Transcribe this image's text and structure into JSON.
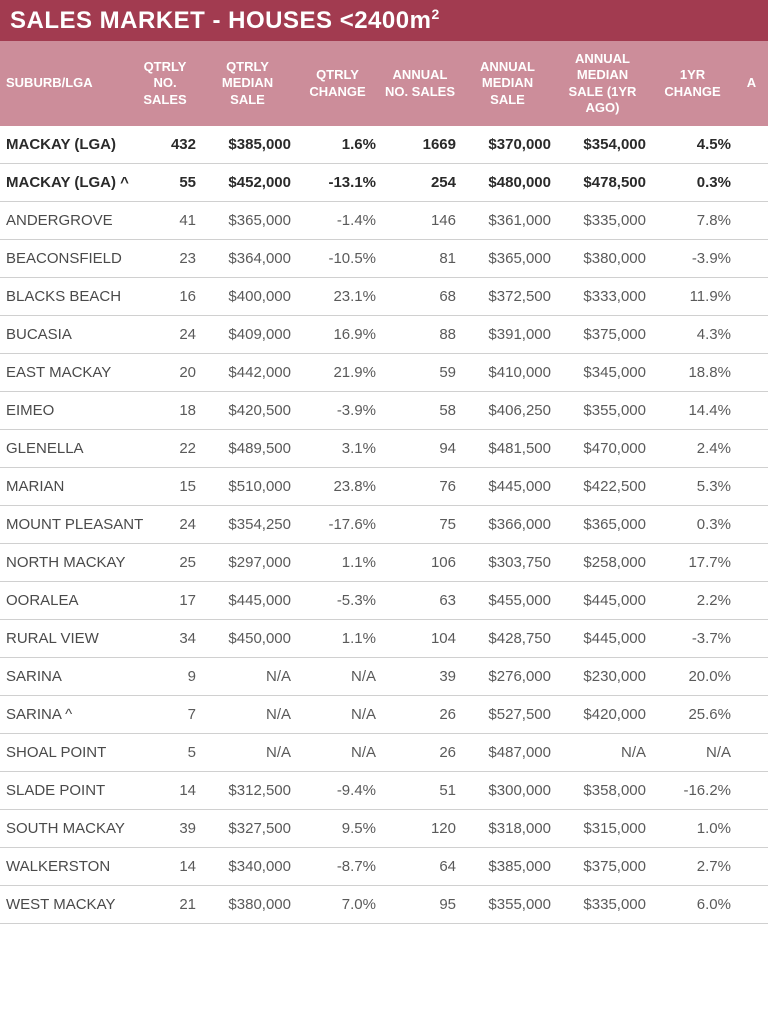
{
  "title_prefix": "SALES MARKET - HOUSES <2400m",
  "title_sup": "2",
  "colors": {
    "title_bg": "#a23b50",
    "header_bg": "#cc8d9a",
    "text": "#5a5a5a",
    "border": "#d0d0d0"
  },
  "columns": [
    "SUBURB/LGA",
    "QTRLY NO. SALES",
    "QTRLY MEDIAN SALE",
    "QTRLY CHANGE",
    "ANNUAL NO. SALES",
    "ANNUAL MEDIAN SALE",
    "ANNUAL MEDIAN SALE (1YR AGO)",
    "1YR CHANGE",
    "A"
  ],
  "rows": [
    {
      "bold": true,
      "cells": [
        "MACKAY (LGA)",
        "432",
        "$385,000",
        "1.6%",
        "1669",
        "$370,000",
        "$354,000",
        "4.5%",
        ""
      ]
    },
    {
      "bold": true,
      "cells": [
        "MACKAY (LGA) ^",
        "55",
        "$452,000",
        "-13.1%",
        "254",
        "$480,000",
        "$478,500",
        "0.3%",
        ""
      ]
    },
    {
      "bold": false,
      "cells": [
        "ANDERGROVE",
        "41",
        "$365,000",
        "-1.4%",
        "146",
        "$361,000",
        "$335,000",
        "7.8%",
        ""
      ]
    },
    {
      "bold": false,
      "cells": [
        "BEACONSFIELD",
        "23",
        "$364,000",
        "-10.5%",
        "81",
        "$365,000",
        "$380,000",
        "-3.9%",
        ""
      ]
    },
    {
      "bold": false,
      "cells": [
        "BLACKS BEACH",
        "16",
        "$400,000",
        "23.1%",
        "68",
        "$372,500",
        "$333,000",
        "11.9%",
        ""
      ]
    },
    {
      "bold": false,
      "cells": [
        "BUCASIA",
        "24",
        "$409,000",
        "16.9%",
        "88",
        "$391,000",
        "$375,000",
        "4.3%",
        ""
      ]
    },
    {
      "bold": false,
      "cells": [
        "EAST MACKAY",
        "20",
        "$442,000",
        "21.9%",
        "59",
        "$410,000",
        "$345,000",
        "18.8%",
        ""
      ]
    },
    {
      "bold": false,
      "cells": [
        "EIMEO",
        "18",
        "$420,500",
        "-3.9%",
        "58",
        "$406,250",
        "$355,000",
        "14.4%",
        ""
      ]
    },
    {
      "bold": false,
      "cells": [
        "GLENELLA",
        "22",
        "$489,500",
        "3.1%",
        "94",
        "$481,500",
        "$470,000",
        "2.4%",
        ""
      ]
    },
    {
      "bold": false,
      "cells": [
        "MARIAN",
        "15",
        "$510,000",
        "23.8%",
        "76",
        "$445,000",
        "$422,500",
        "5.3%",
        ""
      ]
    },
    {
      "bold": false,
      "cells": [
        "MOUNT PLEASANT",
        "24",
        "$354,250",
        "-17.6%",
        "75",
        "$366,000",
        "$365,000",
        "0.3%",
        ""
      ]
    },
    {
      "bold": false,
      "cells": [
        "NORTH MACKAY",
        "25",
        "$297,000",
        "1.1%",
        "106",
        "$303,750",
        "$258,000",
        "17.7%",
        ""
      ]
    },
    {
      "bold": false,
      "cells": [
        "OORALEA",
        "17",
        "$445,000",
        "-5.3%",
        "63",
        "$455,000",
        "$445,000",
        "2.2%",
        ""
      ]
    },
    {
      "bold": false,
      "cells": [
        "RURAL VIEW",
        "34",
        "$450,000",
        "1.1%",
        "104",
        "$428,750",
        "$445,000",
        "-3.7%",
        ""
      ]
    },
    {
      "bold": false,
      "cells": [
        "SARINA",
        "9",
        "N/A",
        "N/A",
        "39",
        "$276,000",
        "$230,000",
        "20.0%",
        ""
      ]
    },
    {
      "bold": false,
      "cells": [
        "SARINA ^",
        "7",
        "N/A",
        "N/A",
        "26",
        "$527,500",
        "$420,000",
        "25.6%",
        ""
      ]
    },
    {
      "bold": false,
      "cells": [
        "SHOAL POINT",
        "5",
        "N/A",
        "N/A",
        "26",
        "$487,000",
        "N/A",
        "N/A",
        ""
      ]
    },
    {
      "bold": false,
      "cells": [
        "SLADE POINT",
        "14",
        "$312,500",
        "-9.4%",
        "51",
        "$300,000",
        "$358,000",
        "-16.2%",
        ""
      ]
    },
    {
      "bold": false,
      "cells": [
        "SOUTH MACKAY",
        "39",
        "$327,500",
        "9.5%",
        "120",
        "$318,000",
        "$315,000",
        "1.0%",
        ""
      ]
    },
    {
      "bold": false,
      "cells": [
        "WALKERSTON",
        "14",
        "$340,000",
        "-8.7%",
        "64",
        "$385,000",
        "$375,000",
        "2.7%",
        ""
      ]
    },
    {
      "bold": false,
      "cells": [
        "WEST MACKAY",
        "21",
        "$380,000",
        "7.0%",
        "95",
        "$355,000",
        "$335,000",
        "6.0%",
        ""
      ]
    }
  ]
}
